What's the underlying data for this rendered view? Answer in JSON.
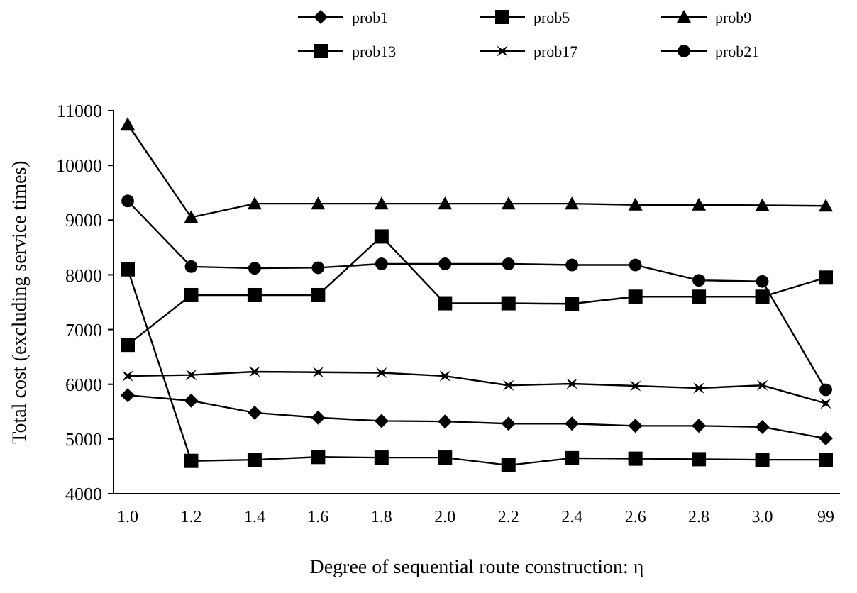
{
  "chart_data": {
    "type": "line",
    "xlabel": "Degree of sequential route construction: η",
    "ylabel": "Total cost (excluding service times)",
    "categories": [
      "1.0",
      "1.2",
      "1.4",
      "1.6",
      "1.8",
      "2.0",
      "2.2",
      "2.4",
      "2.6",
      "2.8",
      "3.0",
      "99"
    ],
    "ylim": [
      4000,
      11000
    ],
    "yticks": [
      4000,
      5000,
      6000,
      7000,
      8000,
      9000,
      10000,
      11000
    ],
    "grid": false,
    "legend": "top",
    "series": [
      {
        "name": "prob1",
        "color": "#000000",
        "marker": "diamond",
        "values": [
          5800,
          5700,
          5480,
          5390,
          5330,
          5320,
          5280,
          5280,
          5240,
          5240,
          5220,
          5010
        ]
      },
      {
        "name": "prob5",
        "color": "#000000",
        "marker": "square",
        "values": [
          8100,
          4600,
          4620,
          4670,
          4660,
          4660,
          4520,
          4650,
          4640,
          4630,
          4620,
          4620
        ]
      },
      {
        "name": "prob9",
        "color": "#000000",
        "marker": "triangle",
        "values": [
          10750,
          9050,
          9300,
          9300,
          9300,
          9300,
          9300,
          9300,
          9280,
          9280,
          9270,
          9260
        ]
      },
      {
        "name": "prob13",
        "color": "#000000",
        "marker": "square",
        "values": [
          6720,
          7630,
          7630,
          7630,
          8700,
          7480,
          7480,
          7470,
          7600,
          7600,
          7600,
          7950
        ]
      },
      {
        "name": "prob17",
        "color": "#000000",
        "marker": "cross",
        "values": [
          6150,
          6170,
          6230,
          6220,
          6210,
          6150,
          5980,
          6010,
          5970,
          5930,
          5980,
          5650
        ]
      },
      {
        "name": "prob21",
        "color": "#000000",
        "marker": "circle",
        "values": [
          9350,
          8150,
          8120,
          8130,
          8200,
          8200,
          8200,
          8180,
          8180,
          7900,
          7880,
          5900
        ]
      }
    ]
  }
}
